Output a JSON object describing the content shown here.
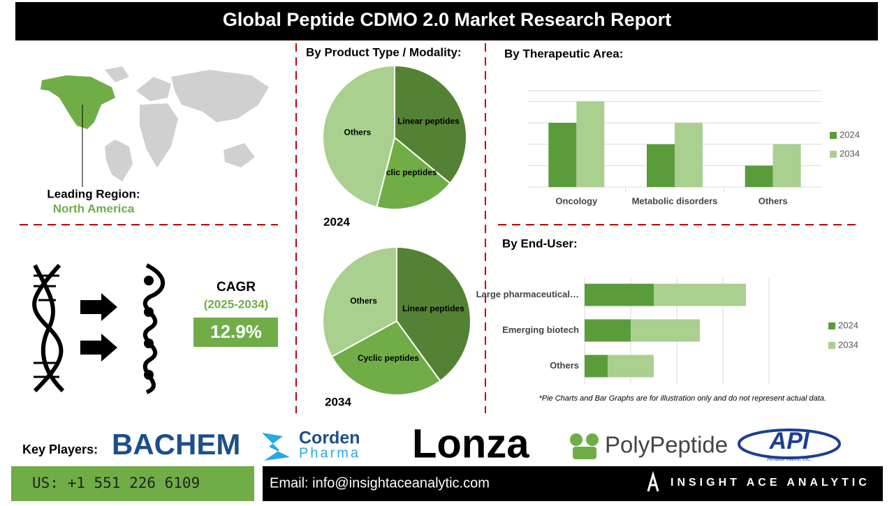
{
  "header": {
    "title": "Global Peptide CDMO 2.0 Market Research Report"
  },
  "region": {
    "label": "Leading Region:",
    "value": "North America"
  },
  "cagr": {
    "label": "CAGR",
    "period": "(2025-2034)",
    "value": "12.9%"
  },
  "chart_data": [
    {
      "type": "pie",
      "title": "By Product Type / Modality:",
      "label": "2024",
      "categories": [
        "Linear peptides",
        "Cyclic peptides",
        "Others"
      ],
      "values": [
        36,
        18,
        46
      ],
      "colors": [
        "#548235",
        "#70ad47",
        "#a9d08e"
      ]
    },
    {
      "type": "pie",
      "label": "2034",
      "categories": [
        "Linear peptides",
        "Cyclic peptides",
        "Others"
      ],
      "values": [
        40,
        27,
        33
      ],
      "colors": [
        "#548235",
        "#70ad47",
        "#a9d08e"
      ]
    },
    {
      "type": "bar",
      "title": "By Therapeutic Area:",
      "categories": [
        "Oncology",
        "Metabolic disorders",
        "Others"
      ],
      "series": [
        {
          "name": "2024",
          "color": "#5b9c3a",
          "values": [
            3,
            2,
            1
          ]
        },
        {
          "name": "2034",
          "color": "#a9d08e",
          "values": [
            4,
            3,
            2
          ]
        }
      ],
      "ylim": [
        0,
        4.5
      ],
      "yticks": [
        0,
        1,
        2,
        3,
        4
      ],
      "grid": true,
      "legend": "right"
    },
    {
      "type": "bar",
      "orientation": "horizontal",
      "stacked": true,
      "title": "By End-User:",
      "categories": [
        "Large pharmaceutical…",
        "Emerging biotech",
        "Others"
      ],
      "series": [
        {
          "name": "2024",
          "color": "#5b9c3a",
          "values": [
            1.5,
            1,
            0.5
          ]
        },
        {
          "name": "2034",
          "color": "#a9d08e",
          "values": [
            2,
            1.5,
            1
          ]
        }
      ],
      "xlim": [
        0,
        4
      ],
      "xticks": [
        0,
        1,
        2,
        3,
        4
      ],
      "grid": true,
      "legend": "right"
    }
  ],
  "note": "*Pie Charts and Bar Graphs are for illustration only and do not represent actual data.",
  "key_players": {
    "label": "Key Players:",
    "bachem": "BACHEM",
    "corden": [
      "Corden",
      "Pharma"
    ],
    "lonza": "Lonza",
    "polypeptide": "PolyPeptide",
    "api": [
      "API",
      "AmbioPharm, Inc."
    ]
  },
  "footer": {
    "phone": "US: +1 551 226 6109",
    "email": "Email: info@insightaceanalytic.com",
    "brand": "INSIGHT ACE ANALYTIC"
  }
}
